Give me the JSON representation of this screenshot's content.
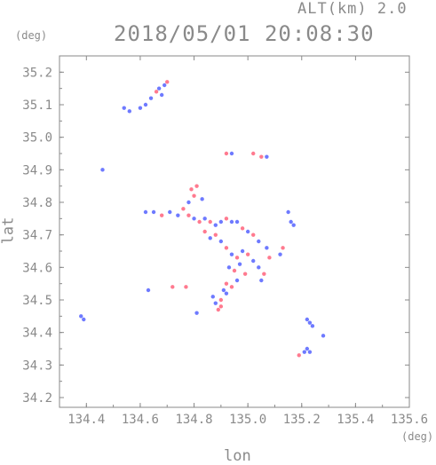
{
  "chart_data": {
    "type": "scatter",
    "title": "2018/05/01 20:08:30",
    "altitude_label": "ALT(km) 2.0",
    "xlabel": "lon",
    "ylabel": "lat",
    "x_unit": "(deg)",
    "y_unit": "(deg)",
    "xlim": [
      134.3,
      135.6
    ],
    "ylim": [
      34.17,
      35.25
    ],
    "xticks": [
      134.4,
      134.6,
      134.8,
      135.0,
      135.2,
      135.4,
      135.6
    ],
    "xtick_labels": [
      "134.4",
      "134.6",
      "134.8",
      "135.0",
      "135.2",
      "135.4",
      "135.6"
    ],
    "yticks": [
      34.2,
      34.3,
      34.4,
      34.5,
      34.6,
      34.7,
      34.8,
      34.9,
      35.0,
      35.1,
      35.2
    ],
    "ytick_labels": [
      "34.2",
      "34.3",
      "34.4",
      "34.5",
      "34.6",
      "34.7",
      "34.8",
      "34.9",
      "35.0",
      "35.1",
      "35.2"
    ],
    "grid": false,
    "colors": {
      "positive": "#ff4d6a",
      "negative": "#3d4dff",
      "axis": "#8a8a8a"
    },
    "series": [
      {
        "values": [
          [
            134.7,
            35.17
          ],
          [
            134.69,
            35.16
          ],
          [
            134.67,
            35.15
          ],
          [
            134.66,
            35.14
          ],
          [
            134.64,
            35.12
          ],
          [
            134.68,
            35.13
          ],
          [
            134.62,
            35.1
          ],
          [
            134.6,
            35.09
          ],
          [
            134.56,
            35.08
          ],
          [
            134.54,
            35.09
          ],
          [
            134.46,
            34.9
          ],
          [
            134.92,
            34.95
          ],
          [
            134.94,
            34.95
          ],
          [
            135.02,
            34.95
          ],
          [
            135.05,
            34.94
          ],
          [
            135.07,
            34.94
          ],
          [
            134.79,
            34.84
          ],
          [
            134.81,
            34.85
          ],
          [
            134.8,
            34.82
          ],
          [
            134.83,
            34.81
          ],
          [
            134.78,
            34.8
          ],
          [
            134.62,
            34.77
          ],
          [
            134.65,
            34.77
          ],
          [
            134.68,
            34.76
          ],
          [
            134.71,
            34.77
          ],
          [
            134.74,
            34.76
          ],
          [
            134.76,
            34.78
          ],
          [
            134.78,
            34.76
          ],
          [
            134.8,
            34.75
          ],
          [
            134.82,
            34.74
          ],
          [
            134.84,
            34.75
          ],
          [
            134.86,
            34.74
          ],
          [
            134.88,
            34.73
          ],
          [
            134.9,
            34.74
          ],
          [
            134.92,
            34.75
          ],
          [
            134.94,
            34.74
          ],
          [
            134.96,
            34.74
          ],
          [
            134.98,
            34.72
          ],
          [
            135.0,
            34.71
          ],
          [
            135.02,
            34.7
          ],
          [
            135.04,
            34.68
          ],
          [
            134.84,
            34.71
          ],
          [
            134.86,
            34.69
          ],
          [
            134.88,
            34.7
          ],
          [
            134.9,
            34.68
          ],
          [
            134.92,
            34.66
          ],
          [
            134.94,
            34.64
          ],
          [
            134.96,
            34.63
          ],
          [
            134.98,
            34.65
          ],
          [
            135.0,
            34.64
          ],
          [
            135.02,
            34.62
          ],
          [
            135.04,
            34.6
          ],
          [
            135.06,
            34.58
          ],
          [
            135.05,
            34.56
          ],
          [
            135.07,
            34.66
          ],
          [
            135.08,
            34.63
          ],
          [
            134.93,
            34.6
          ],
          [
            134.95,
            34.59
          ],
          [
            134.97,
            34.61
          ],
          [
            134.99,
            34.58
          ],
          [
            134.96,
            34.56
          ],
          [
            134.94,
            34.54
          ],
          [
            134.92,
            34.52
          ],
          [
            134.9,
            34.5
          ],
          [
            134.88,
            34.49
          ],
          [
            134.9,
            34.48
          ],
          [
            134.87,
            34.51
          ],
          [
            134.92,
            34.55
          ],
          [
            134.91,
            34.53
          ],
          [
            134.89,
            34.47
          ],
          [
            134.72,
            34.54
          ],
          [
            134.77,
            34.54
          ],
          [
            134.63,
            34.53
          ],
          [
            134.81,
            34.46
          ],
          [
            135.13,
            34.66
          ],
          [
            135.12,
            34.64
          ],
          [
            135.15,
            34.77
          ],
          [
            135.16,
            34.74
          ],
          [
            135.17,
            34.73
          ],
          [
            134.38,
            34.45
          ],
          [
            134.39,
            34.44
          ],
          [
            135.22,
            34.44
          ],
          [
            135.23,
            34.43
          ],
          [
            135.24,
            34.42
          ],
          [
            135.28,
            34.39
          ],
          [
            135.19,
            34.33
          ],
          [
            135.21,
            34.34
          ],
          [
            135.22,
            34.35
          ],
          [
            135.23,
            34.34
          ]
        ],
        "signs": [
          1,
          -1,
          -1,
          1,
          -1,
          -1,
          -1,
          -1,
          -1,
          -1,
          -1,
          1,
          -1,
          1,
          1,
          -1,
          1,
          1,
          1,
          -1,
          -1,
          -1,
          -1,
          1,
          -1,
          -1,
          1,
          1,
          -1,
          1,
          -1,
          1,
          -1,
          -1,
          1,
          -1,
          -1,
          1,
          -1,
          1,
          -1,
          1,
          -1,
          1,
          -1,
          1,
          -1,
          1,
          -1,
          1,
          -1,
          -1,
          1,
          -1,
          -1,
          1,
          -1,
          1,
          -1,
          1,
          -1,
          1,
          -1,
          1,
          -1,
          1,
          -1,
          1,
          -1,
          1,
          1,
          1,
          -1,
          -1,
          1,
          -1,
          -1,
          -1,
          -1,
          -1,
          -1,
          -1,
          -1,
          -1,
          -1,
          1,
          -1,
          -1,
          -1
        ]
      }
    ]
  }
}
